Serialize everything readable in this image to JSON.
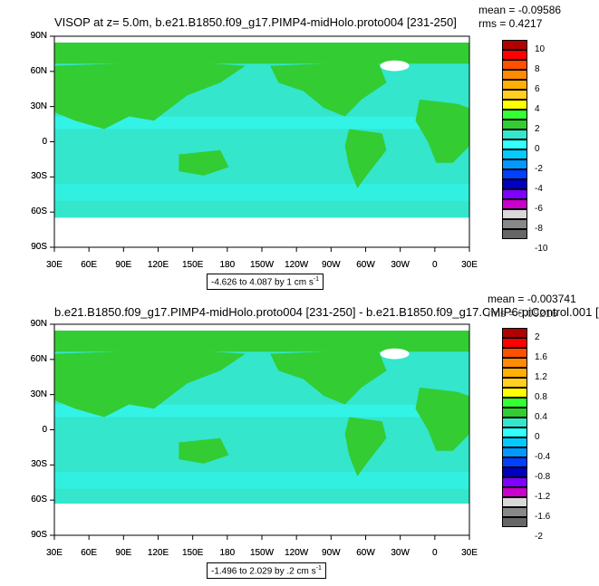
{
  "colors": {
    "ocean": "#33e6cc",
    "ocean_light": "#33ffff",
    "land": "#33cc33",
    "land_alt": "#33dd55",
    "missing": "#ffffff"
  },
  "panel_top": {
    "title": "VISOP at z=   5.0m, b.e21.B1850.f09_g17.PIMP4-midHolo.proto004 [231-250]",
    "mean": "mean = -0.09586",
    "rms": "rms = 0.4217",
    "range_note": "-4.626 to 4.087 by 1 cm s",
    "range_unit_exp": "-1",
    "colorbar": {
      "labels": [
        "10",
        "8",
        "6",
        "4",
        "2",
        "0",
        "-2",
        "-4",
        "-6",
        "-8",
        "-10"
      ],
      "colors": [
        "#b00000",
        "#ff0000",
        "#ff5000",
        "#ff8c00",
        "#ffb000",
        "#ffd020",
        "#ffff00",
        "#33ff33",
        "#33cc33",
        "#33e6cc",
        "#33ffff",
        "#00ccff",
        "#0099ff",
        "#0040ff",
        "#0000c0",
        "#8000ff",
        "#cc00cc",
        "#d8d8d8",
        "#888888",
        "#666666"
      ]
    }
  },
  "panel_bottom": {
    "title": "b.e21.B1850.f09_g17.PIMP4-midHolo.proto004 [231-250] - b.e21.B1850.f09_g17.CMIP6-piControl.001 [",
    "mean": "mean = -0.003741",
    "rms": "rms = 0.09216",
    "range_note": "-1.496 to 2.029 by .2 cm s",
    "range_unit_exp": "-1",
    "colorbar": {
      "labels": [
        "2",
        "1.6",
        "1.2",
        "0.8",
        "0.4",
        "0",
        "-0.4",
        "-0.8",
        "-1.2",
        "-1.6",
        "-2"
      ],
      "colors": [
        "#b00000",
        "#ff0000",
        "#ff5000",
        "#ff8c00",
        "#ffb000",
        "#ffd020",
        "#ffff00",
        "#33ff33",
        "#33cc33",
        "#33e6cc",
        "#33ffff",
        "#00ccff",
        "#0099ff",
        "#0040ff",
        "#0000c0",
        "#8000ff",
        "#cc00cc",
        "#d8d8d8",
        "#888888",
        "#666666"
      ]
    }
  },
  "axes": {
    "lat_labels": [
      "90N",
      "60N",
      "30N",
      "0",
      "30S",
      "60S",
      "90S"
    ],
    "lon_labels": [
      "30E",
      "60E",
      "90E",
      "120E",
      "150E",
      "180",
      "150W",
      "120W",
      "90W",
      "60W",
      "30W",
      "0",
      "30E"
    ]
  }
}
